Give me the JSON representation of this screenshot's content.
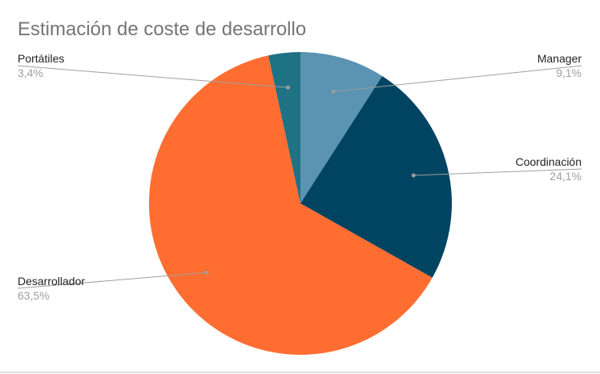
{
  "chart_data": {
    "type": "pie",
    "title": "Estimación de coste de desarrollo",
    "start": "top",
    "direction": "clockwise",
    "legend": "none",
    "slices": [
      {
        "label": "Manager",
        "value": 9.1,
        "value_label": "9,1%",
        "color": "#5b93b2"
      },
      {
        "label": "Coordinación",
        "value": 24.1,
        "value_label": "24,1%",
        "color": "#004461"
      },
      {
        "label": "Desarrollador",
        "value": 63.5,
        "value_label": "63,5%",
        "color": "#ff6d31"
      },
      {
        "label": "Portátiles",
        "value": 3.4,
        "value_label": "3,4%",
        "color": "#1e7283"
      }
    ]
  }
}
